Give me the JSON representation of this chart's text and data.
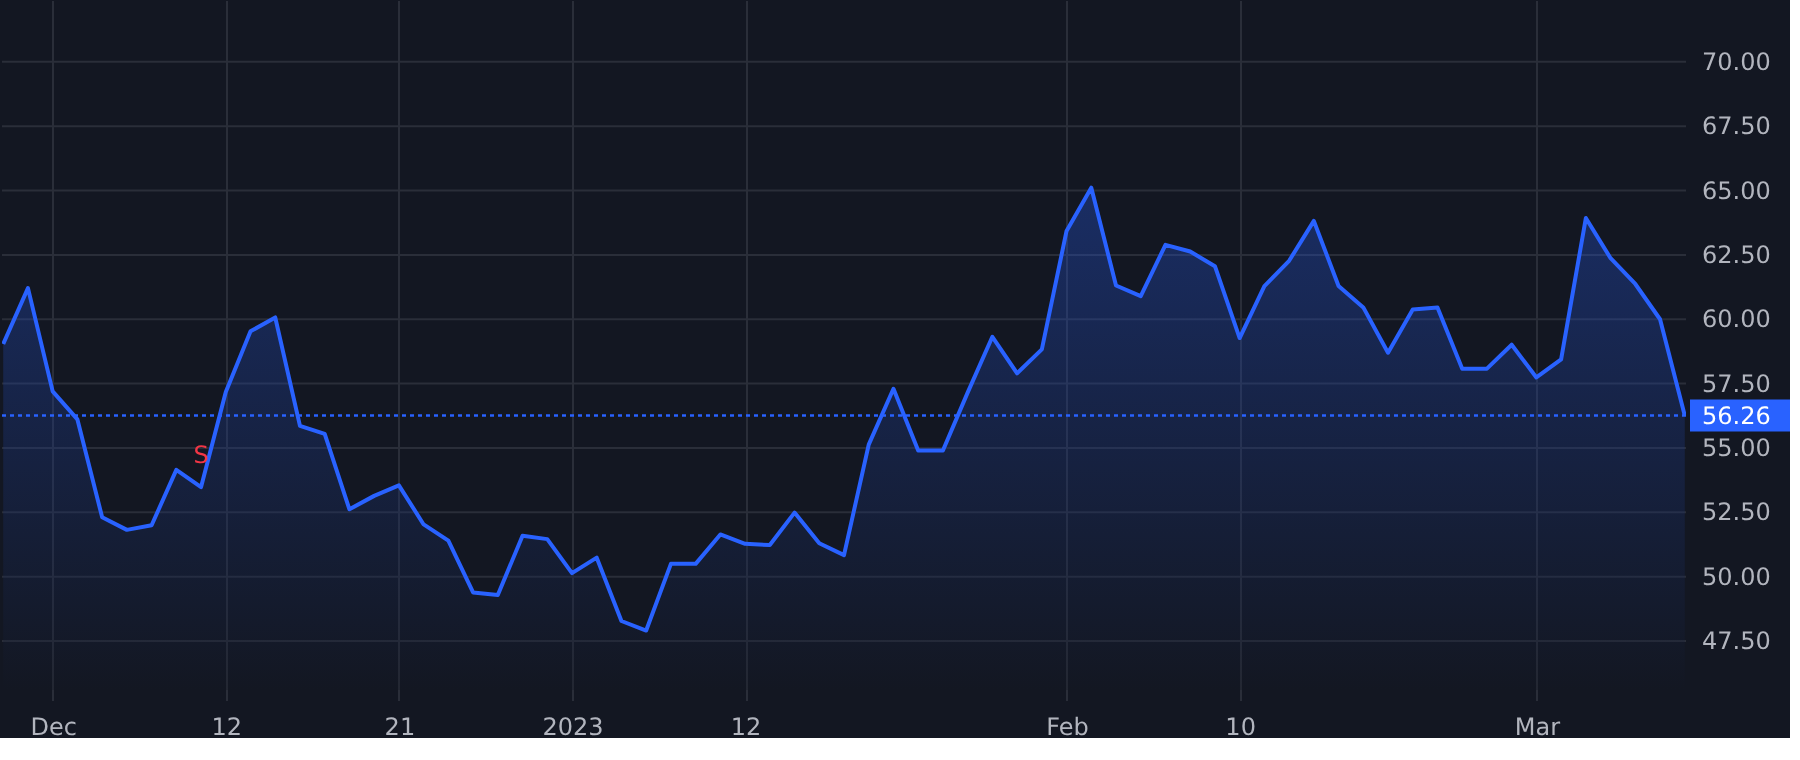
{
  "chart_data": {
    "type": "area",
    "categories": [
      null,
      null,
      "Dec",
      null,
      null,
      null,
      null,
      null,
      null,
      "12",
      null,
      null,
      null,
      null,
      null,
      null,
      "21",
      null,
      null,
      null,
      null,
      null,
      null,
      "2023",
      null,
      null,
      null,
      null,
      null,
      null,
      "12",
      null,
      null,
      null,
      null,
      null,
      null,
      null,
      null,
      null,
      null,
      null,
      null,
      "Feb",
      null,
      null,
      null,
      null,
      null,
      null,
      "10",
      null,
      null,
      null,
      null,
      null,
      null,
      null,
      null,
      null,
      null,
      null,
      "Mar",
      null,
      null,
      null,
      null,
      null,
      null
    ],
    "series": [
      {
        "color": "#2962ff",
        "values": [
          59.04,
          61.21,
          57.2,
          56.11,
          52.31,
          51.82,
          52.0,
          54.15,
          53.48,
          57.17,
          59.53,
          60.07,
          55.86,
          55.55,
          52.62,
          53.14,
          53.55,
          52.03,
          51.4,
          49.39,
          49.29,
          51.59,
          51.46,
          50.14,
          50.74,
          48.28,
          47.91,
          50.5,
          50.5,
          51.64,
          51.28,
          51.23,
          52.49,
          51.3,
          50.84,
          55.13,
          57.3,
          54.9,
          54.9,
          57.15,
          59.32,
          57.9,
          58.83,
          63.43,
          65.11,
          61.31,
          60.9,
          62.89,
          62.63,
          62.06,
          59.27,
          61.29,
          62.27,
          63.82,
          61.29,
          60.46,
          58.7,
          60.38,
          60.46,
          58.08,
          58.08,
          59.01,
          57.74,
          58.44,
          63.93,
          62.37,
          61.37,
          60.0,
          56.26
        ]
      }
    ],
    "ylim": [
      45.6,
      72.4
    ],
    "yticks": [
      {
        "value": 47.5,
        "label": "47.50"
      },
      {
        "value": 50,
        "label": "50.00"
      },
      {
        "value": 52.5,
        "label": "52.50"
      },
      {
        "value": 55,
        "label": "55.00"
      },
      {
        "value": 57.5,
        "label": "57.50"
      },
      {
        "value": 60,
        "label": "60.00"
      },
      {
        "value": 62.5,
        "label": "62.50"
      },
      {
        "value": 65,
        "label": "65.00"
      },
      {
        "value": 67.5,
        "label": "67.50"
      },
      {
        "value": 70,
        "label": "70.00"
      }
    ],
    "grid": true,
    "ref_lines": [
      {
        "axis": "y",
        "value": 56.26,
        "label": "56.26",
        "color": "#2962ff",
        "line_style": "dotted"
      }
    ],
    "annotations": [
      {
        "text": "S",
        "y": 53.48
      }
    ]
  }
}
